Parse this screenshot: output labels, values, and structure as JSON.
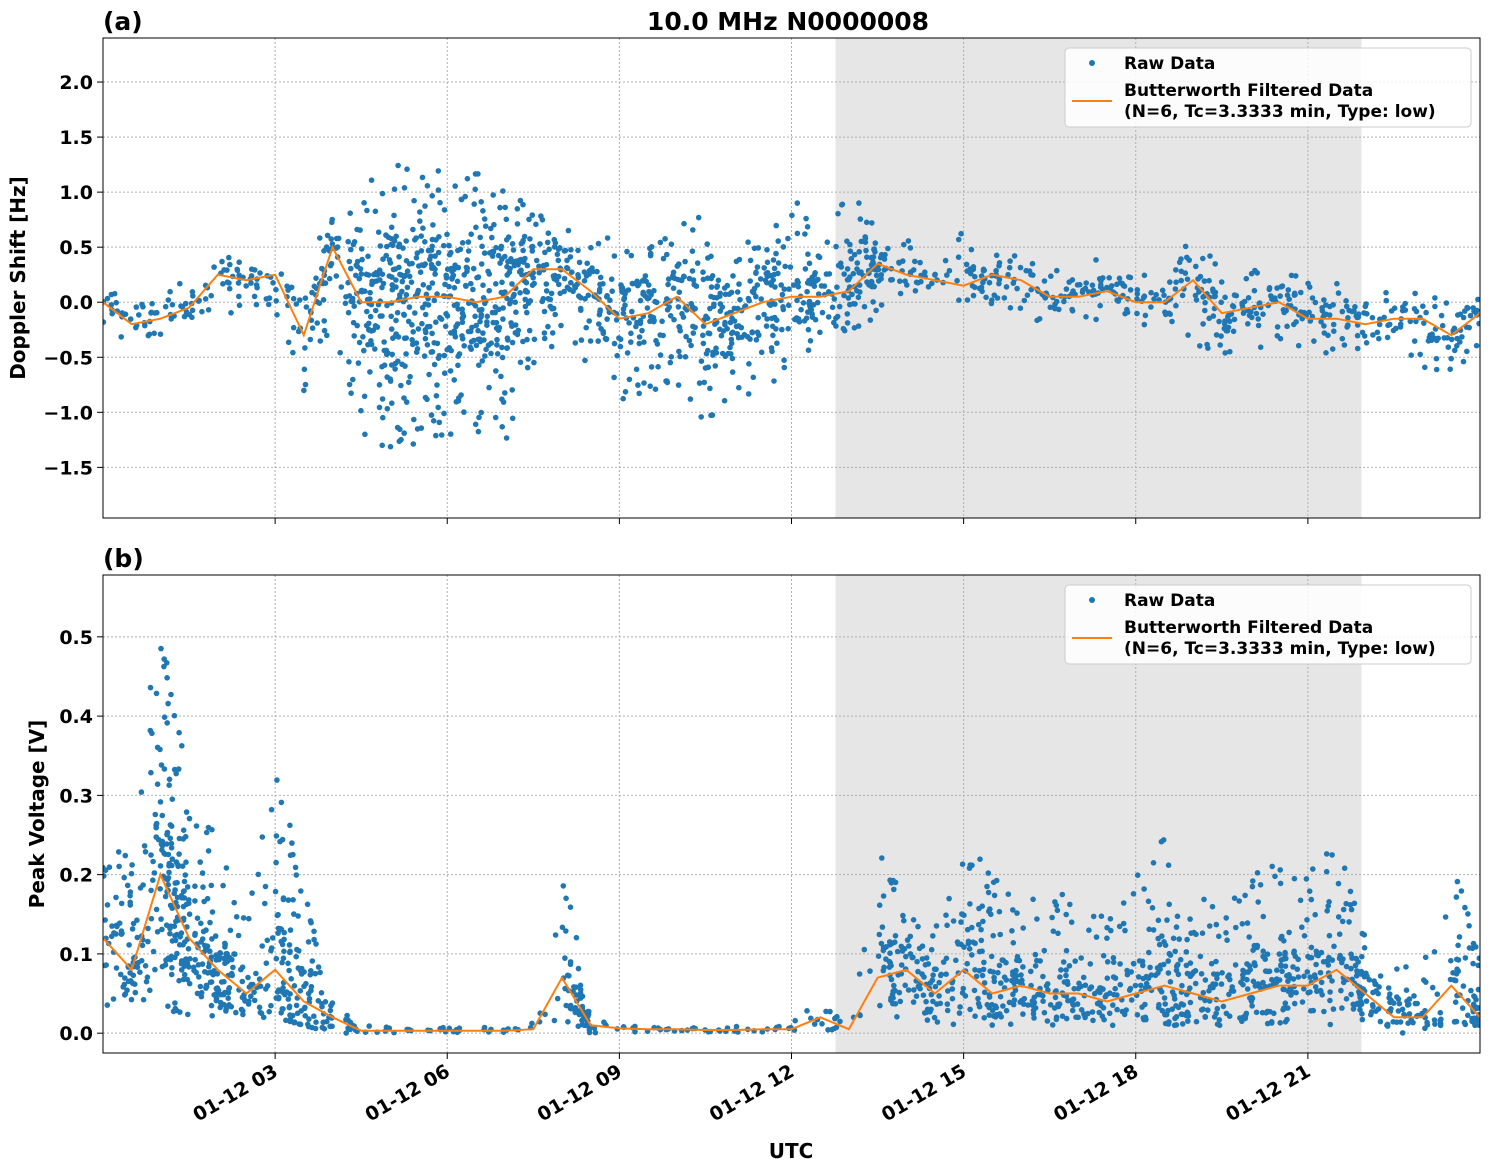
{
  "chart_data": [
    {
      "type": "scatter",
      "panel_label": "(a)",
      "title": "10.0 MHz N0000008",
      "xlabel": "",
      "ylabel": "Doppler Shift [Hz]",
      "date": "01-12",
      "xlim": [
        "00:00",
        "24:00"
      ],
      "ylim": [
        -1.96,
        2.4
      ],
      "yticks": [
        "-1.5",
        "-1.0",
        "-0.5",
        "0.0",
        "0.5",
        "1.0",
        "1.5",
        "2.0"
      ],
      "xticks": [
        "01-12 03",
        "01-12 06",
        "01-12 09",
        "01-12 12",
        "01-12 15",
        "01-12 18",
        "01-12 21"
      ],
      "grid": true,
      "legend_position": "top-right",
      "shaded_interval": [
        "12:46",
        "21:56"
      ],
      "x_hours_step": 0.5,
      "series": [
        {
          "name": "Raw Data",
          "kind": "points",
          "color": "#1f77b4",
          "low": [
            -0.3,
            -0.4,
            -0.3,
            -0.2,
            -0.1,
            -0.1,
            -0.1,
            -1.0,
            -0.3,
            -1.2,
            -1.4,
            -1.3,
            -1.2,
            -1.2,
            -1.3,
            -0.6,
            -0.3,
            -0.6,
            -0.9,
            -0.8,
            -0.8,
            -1.1,
            -0.8,
            -0.9,
            -0.5,
            -0.4,
            -0.5,
            -0.1,
            0.1,
            0.1,
            0.0,
            -0.1,
            -0.1,
            -0.3,
            -0.2,
            -0.2,
            -0.2,
            -0.3,
            -0.4,
            -0.5,
            -0.4,
            -0.5,
            -0.5,
            -0.5,
            -0.4,
            -0.4,
            -0.6,
            -0.7,
            -0.4
          ],
          "high": [
            0.1,
            0.05,
            0.1,
            0.2,
            0.5,
            0.35,
            0.35,
            0.2,
            0.9,
            1.0,
            1.4,
            1.2,
            1.2,
            1.2,
            1.2,
            0.8,
            0.8,
            0.6,
            0.6,
            0.6,
            0.7,
            0.8,
            0.5,
            0.6,
            1.0,
            0.6,
            1.2,
            0.6,
            0.6,
            0.4,
            0.7,
            0.5,
            0.4,
            0.3,
            0.4,
            0.4,
            0.3,
            0.4,
            0.6,
            0.3,
            0.3,
            0.3,
            0.2,
            0.2,
            0.1,
            0.1,
            0.1,
            0.1,
            0.1
          ]
        },
        {
          "name": "Butterworth Filtered Data\n(N=6, Tc=3.3333 min, Type: low)",
          "kind": "line",
          "color": "#ff7f0e",
          "values": [
            0.0,
            -0.2,
            -0.15,
            -0.05,
            0.25,
            0.2,
            0.25,
            -0.3,
            0.5,
            0.0,
            0.0,
            0.05,
            0.05,
            0.0,
            0.05,
            0.3,
            0.3,
            0.1,
            -0.15,
            -0.1,
            0.05,
            -0.2,
            -0.1,
            0.0,
            0.05,
            0.05,
            0.1,
            0.35,
            0.25,
            0.2,
            0.15,
            0.25,
            0.2,
            0.05,
            0.05,
            0.1,
            0.0,
            0.0,
            0.2,
            -0.1,
            -0.05,
            0.0,
            -0.15,
            -0.15,
            -0.2,
            -0.15,
            -0.15,
            -0.3,
            -0.1
          ]
        }
      ]
    },
    {
      "type": "scatter",
      "panel_label": "(b)",
      "title": "",
      "xlabel": "UTC",
      "ylabel": "Peak Voltage [V]",
      "date": "01-12",
      "xlim": [
        "00:00",
        "24:00"
      ],
      "ylim": [
        -0.025,
        0.578
      ],
      "yticks": [
        "0.0",
        "0.1",
        "0.2",
        "0.3",
        "0.4",
        "0.5"
      ],
      "xticks": [
        "01-12 03",
        "01-12 06",
        "01-12 09",
        "01-12 12",
        "01-12 15",
        "01-12 18",
        "01-12 21"
      ],
      "grid": true,
      "legend_position": "top-right",
      "shaded_interval": [
        "12:46",
        "21:56"
      ],
      "x_hours_step": 0.5,
      "series": [
        {
          "name": "Raw Data",
          "kind": "points",
          "color": "#1f77b4",
          "low": [
            0.03,
            0.02,
            0.03,
            0.02,
            0.02,
            0.02,
            0.02,
            0.01,
            0.0,
            0.0,
            0.0,
            0.0,
            0.0,
            0.0,
            0.0,
            0.0,
            0.01,
            0.0,
            0.0,
            0.0,
            0.0,
            0.0,
            0.0,
            0.0,
            0.0,
            0.0,
            0.0,
            0.01,
            0.01,
            0.01,
            0.01,
            0.01,
            0.01,
            0.01,
            0.01,
            0.01,
            0.01,
            0.01,
            0.01,
            0.01,
            0.01,
            0.01,
            0.01,
            0.01,
            0.01,
            0.0,
            0.0,
            0.01,
            0.01
          ],
          "high": [
            0.22,
            0.24,
            0.55,
            0.3,
            0.25,
            0.15,
            0.33,
            0.2,
            0.05,
            0.01,
            0.008,
            0.008,
            0.008,
            0.008,
            0.008,
            0.015,
            0.23,
            0.02,
            0.015,
            0.012,
            0.012,
            0.012,
            0.012,
            0.015,
            0.015,
            0.04,
            0.02,
            0.23,
            0.18,
            0.15,
            0.22,
            0.22,
            0.15,
            0.2,
            0.15,
            0.15,
            0.2,
            0.25,
            0.17,
            0.17,
            0.2,
            0.22,
            0.2,
            0.25,
            0.13,
            0.1,
            0.08,
            0.23,
            0.1
          ]
        },
        {
          "name": "Butterworth Filtered Data\n(N=6, Tc=3.3333 min, Type: low)",
          "kind": "line",
          "color": "#ff7f0e",
          "values": [
            0.12,
            0.08,
            0.2,
            0.12,
            0.08,
            0.05,
            0.08,
            0.04,
            0.02,
            0.003,
            0.003,
            0.003,
            0.003,
            0.003,
            0.003,
            0.005,
            0.07,
            0.01,
            0.006,
            0.005,
            0.005,
            0.004,
            0.004,
            0.005,
            0.005,
            0.02,
            0.005,
            0.07,
            0.08,
            0.05,
            0.08,
            0.05,
            0.06,
            0.05,
            0.05,
            0.04,
            0.05,
            0.06,
            0.05,
            0.04,
            0.05,
            0.06,
            0.06,
            0.08,
            0.05,
            0.02,
            0.02,
            0.06,
            0.02
          ]
        }
      ]
    }
  ],
  "legend": {
    "raw": "Raw Data",
    "filtered_line1": "Butterworth Filtered Data",
    "filtered_line2": "(N=6, Tc=3.3333 min, Type: low)"
  }
}
